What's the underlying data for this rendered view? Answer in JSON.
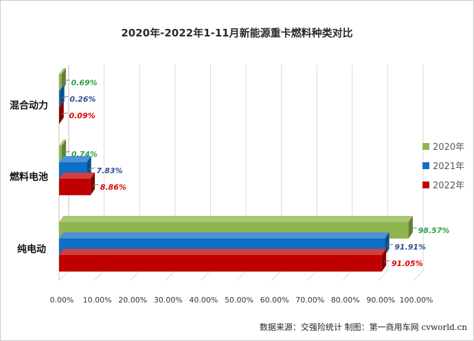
{
  "chart_data": {
    "type": "bar",
    "orientation": "horizontal",
    "title": "2020年-2022年1-11月新能源重卡燃料种类对比",
    "categories": [
      "混合动力",
      "燃料电池",
      "纯电动"
    ],
    "series": [
      {
        "name": "2020年",
        "color": "#8fb54e",
        "values": [
          0.69,
          0.74,
          98.57
        ],
        "labels": [
          "0.69%",
          "0.74%",
          "98.57%"
        ],
        "label_color": "#2f9e48"
      },
      {
        "name": "2021年",
        "color": "#0f6fc6",
        "values": [
          0.26,
          7.83,
          91.91
        ],
        "labels": [
          "0.26%",
          "7.83%",
          "91.91%"
        ],
        "label_color": "#2e4f8f"
      },
      {
        "name": "2022年",
        "color": "#c00000",
        "values": [
          0.09,
          8.86,
          91.05
        ],
        "labels": [
          "0.09%",
          "8.86%",
          "91.05%"
        ],
        "label_color": "#e00000"
      }
    ],
    "xlim": [
      0,
      100
    ],
    "x_ticks": [
      "0.00%",
      "10.00%",
      "20.00%",
      "30.00%",
      "40.00%",
      "50.00%",
      "60.00%",
      "70.00%",
      "80.00%",
      "90.00%",
      "100.00%"
    ],
    "grid": true,
    "legend_position": "right"
  },
  "source_text": "数据来源：交强险统计  制图：第一商用车网 cvworld.cn"
}
